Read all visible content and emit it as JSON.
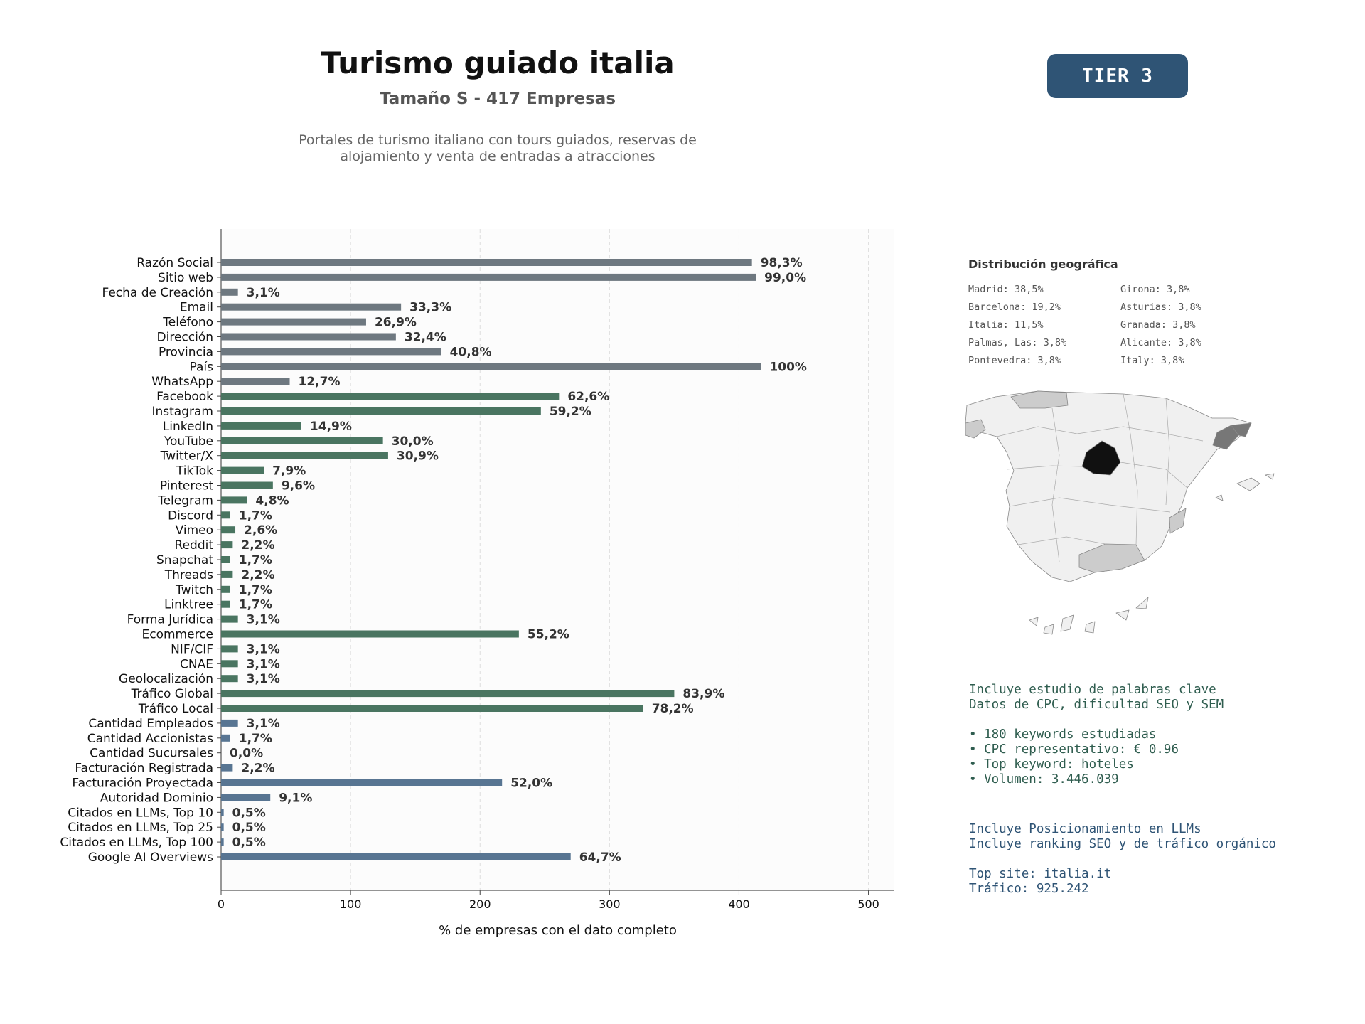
{
  "header": {
    "title": "Turismo guiado italia",
    "subtitle": "Tamaño S - 417 Empresas",
    "description_line1": "Portales de turismo italiano con tours guiados, reservas de",
    "description_line2": "alojamiento y venta de entradas a atracciones",
    "tier": "TIER 3"
  },
  "chart_data": {
    "type": "bar",
    "orientation": "horizontal",
    "xlabel": "% de empresas con el dato completo",
    "xlim": [
      0,
      520
    ],
    "xticks": [
      0,
      100,
      200,
      300,
      400,
      500
    ],
    "grid": "vertical-dashed",
    "categories": [
      "Razón Social",
      "Sitio web",
      "Fecha de Creación",
      "Email",
      "Teléfono",
      "Dirección",
      "Provincia",
      "País",
      "WhatsApp",
      "Facebook",
      "Instagram",
      "LinkedIn",
      "YouTube",
      "Twitter/X",
      "TikTok",
      "Pinterest",
      "Telegram",
      "Discord",
      "Vimeo",
      "Reddit",
      "Snapchat",
      "Threads",
      "Twitch",
      "Linktree",
      "Forma Jurídica",
      "Ecommerce",
      "NIF/CIF",
      "CNAE",
      "Geolocalización",
      "Tráfico Global",
      "Tráfico Local",
      "Cantidad Empleados",
      "Cantidad Accionistas",
      "Cantidad Sucursales",
      "Facturación Registrada",
      "Facturación Proyectada",
      "Autoridad Dominio",
      "Citados en LLMs, Top 10",
      "Citados en LLMs, Top 25",
      "Citados en LLMs, Top 100",
      "Google AI Overviews"
    ],
    "values": [
      410,
      413,
      13,
      139,
      112,
      135,
      170,
      417,
      53,
      261,
      247,
      62,
      125,
      129,
      33,
      40,
      20,
      7,
      11,
      9,
      7,
      9,
      7,
      7,
      13,
      230,
      13,
      13,
      13,
      350,
      326,
      13,
      7,
      0,
      9,
      217,
      38,
      2,
      2,
      2,
      270
    ],
    "labels": [
      "98,3%",
      "99,0%",
      "3,1%",
      "33,3%",
      "26,9%",
      "32,4%",
      "40,8%",
      "100%",
      "12,7%",
      "62,6%",
      "59,2%",
      "14,9%",
      "30,0%",
      "30,9%",
      "7,9%",
      "9,6%",
      "4,8%",
      "1,7%",
      "2,6%",
      "2,2%",
      "1,7%",
      "2,2%",
      "1,7%",
      "1,7%",
      "3,1%",
      "55,2%",
      "3,1%",
      "3,1%",
      "3,1%",
      "83,9%",
      "78,2%",
      "3,1%",
      "1,7%",
      "0,0%",
      "2,2%",
      "52,0%",
      "9,1%",
      "0,5%",
      "0,5%",
      "0,5%",
      "64,7%"
    ],
    "groups": [
      {
        "color": "#6e7880",
        "count": 9
      },
      {
        "color": "#4a7561",
        "count": 22
      },
      {
        "color": "#587592",
        "count": 10
      }
    ]
  },
  "geo": {
    "title": "Distribución geográfica",
    "items": [
      "Madrid: 38,5%",
      "Girona: 3,8%",
      "Barcelona: 19,2%",
      "Asturias: 3,8%",
      "Italia: 11,5%",
      "Granada: 3,8%",
      "Palmas, Las: 3,8%",
      "Alicante: 3,8%",
      "Pontevedra: 3,8%",
      "Italy: 3,8%"
    ]
  },
  "keywords": {
    "line1": "Incluye estudio de palabras clave",
    "line2": "Datos de CPC, dificultad SEO y SEM",
    "bullet1": "• 180 keywords estudiadas",
    "bullet2": "• CPC representativo: € 0.96",
    "bullet3": "• Top keyword: hoteles",
    "bullet4": "• Volumen: 3.446.039"
  },
  "llm": {
    "line1": "Incluye Posicionamiento en LLMs",
    "line2": "Incluye ranking SEO y de tráfico orgánico",
    "line3": "Top site: italia.it",
    "line4": "Tráfico: 925.242"
  },
  "colors": {
    "tier_bg": "#2f5475",
    "keyword_text": "#2f5d4f",
    "llm_text": "#2f5475",
    "map_madrid": "#111111",
    "map_barcelona": "#777777",
    "map_other_highlight": "#c8c8c8",
    "map_base": "#f0f0f0"
  }
}
